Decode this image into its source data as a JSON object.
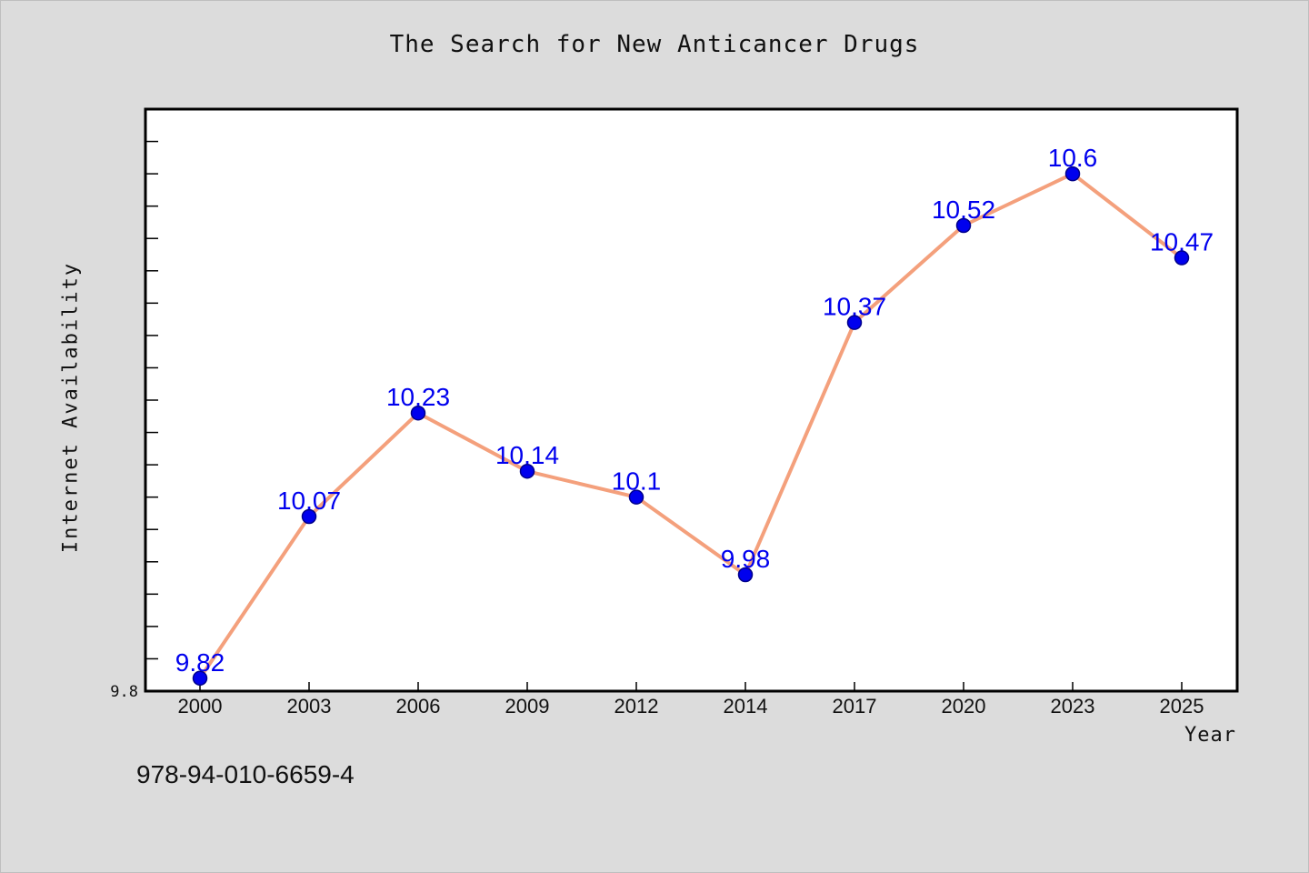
{
  "chart_data": {
    "type": "line",
    "title": "The Search for New Anticancer Drugs",
    "xlabel": "Year",
    "ylabel": "Internet Availability",
    "categories": [
      "2000",
      "2003",
      "2006",
      "2009",
      "2012",
      "2014",
      "2017",
      "2020",
      "2023",
      "2025"
    ],
    "values": [
      9.82,
      10.07,
      10.23,
      10.14,
      10.1,
      9.98,
      10.37,
      10.52,
      10.6,
      10.47
    ],
    "data_labels": [
      "9.82",
      "10.07",
      "10.23",
      "10.14",
      "10.1",
      "9.98",
      "10.37",
      "10.52",
      "10.6",
      "10.47"
    ],
    "ylim": [
      9.8,
      10.7
    ],
    "y_tick_labels": [
      "9.8"
    ],
    "grid": false,
    "line_color": "#f4a07c",
    "marker_color": "#0000ee",
    "label_color": "#0000ee"
  },
  "footer": {
    "isbn": "978-94-010-6659-4"
  }
}
